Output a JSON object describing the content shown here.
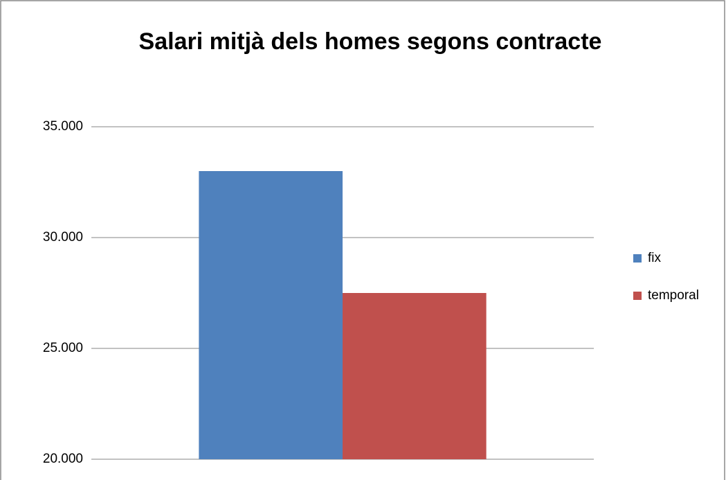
{
  "chart_data": {
    "type": "bar",
    "title": "Salari mitjà dels homes segons contracte",
    "categories": [
      null
    ],
    "series": [
      {
        "name": "fix",
        "color": "#4f81bd",
        "values": [
          33000
        ]
      },
      {
        "name": "temporal",
        "color": "#c0504d",
        "values": [
          27500
        ]
      }
    ],
    "ylim": [
      20000,
      35000
    ],
    "yticks": [
      {
        "value": 20000,
        "label": "20.000"
      },
      {
        "value": 25000,
        "label": "25.000"
      },
      {
        "value": 30000,
        "label": "30.000"
      },
      {
        "value": 35000,
        "label": "35.000"
      }
    ],
    "grid": true,
    "legend": "right"
  }
}
